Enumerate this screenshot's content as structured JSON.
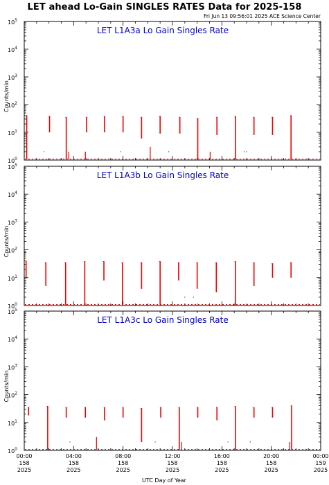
{
  "title": "LET ahead Lo-Gain SINGLES RATES Data for 2025-158",
  "timestamp": "Fri Jun 13 09:56:01 2025 ACE Science Center",
  "colors": {
    "series": "#ee0000",
    "title": "#0000cc",
    "axes": "#000000",
    "background": "#ffffff"
  },
  "chart_data": [
    {
      "type": "line",
      "title": "LET L1A3a Lo Gain Singles Rate",
      "ylabel": "Counts/min",
      "yscale": "log",
      "ylim": [
        1,
        100000
      ],
      "xlim": [
        0,
        24
      ],
      "x_unit": "UTC hour of day 158",
      "baseline": 1,
      "spikes": [
        {
          "x": 0.2,
          "top": 40,
          "bottom": 1
        },
        {
          "x": 2.05,
          "top": 38,
          "bottom": 10
        },
        {
          "x": 3.4,
          "top": 35,
          "bottom": 1
        },
        {
          "x": 5.05,
          "top": 35,
          "bottom": 10
        },
        {
          "x": 6.5,
          "top": 38,
          "bottom": 10
        },
        {
          "x": 8.0,
          "top": 38,
          "bottom": 10
        },
        {
          "x": 9.5,
          "top": 35,
          "bottom": 6
        },
        {
          "x": 11.0,
          "top": 38,
          "bottom": 9
        },
        {
          "x": 12.6,
          "top": 35,
          "bottom": 9
        },
        {
          "x": 14.05,
          "top": 32,
          "bottom": 1
        },
        {
          "x": 15.6,
          "top": 35,
          "bottom": 8
        },
        {
          "x": 17.1,
          "top": 38,
          "bottom": 1
        },
        {
          "x": 18.6,
          "top": 35,
          "bottom": 8
        },
        {
          "x": 20.1,
          "top": 35,
          "bottom": 8
        },
        {
          "x": 21.6,
          "top": 40,
          "bottom": 1
        }
      ],
      "blips": [
        {
          "x": 3.6,
          "value": 2
        },
        {
          "x": 4.95,
          "value": 2
        },
        {
          "x": 10.2,
          "value": 3
        },
        {
          "x": 15.05,
          "value": 2
        }
      ],
      "dots": [
        {
          "x": 1.6,
          "value": 2
        },
        {
          "x": 7.8,
          "value": 2
        },
        {
          "x": 11.7,
          "value": 2
        },
        {
          "x": 17.8,
          "value": 2
        },
        {
          "x": 18.0,
          "value": 2
        }
      ]
    },
    {
      "type": "line",
      "title": "LET L1A3b Lo Gain Singles Rate",
      "ylabel": "Counts/min",
      "yscale": "log",
      "ylim": [
        1,
        100000
      ],
      "xlim": [
        0,
        24
      ],
      "x_unit": "UTC hour of day 158",
      "baseline": 1,
      "spikes": [
        {
          "x": 0.15,
          "top": 40,
          "bottom": 10
        },
        {
          "x": 1.75,
          "top": 35,
          "bottom": 5
        },
        {
          "x": 3.35,
          "top": 35,
          "bottom": 1
        },
        {
          "x": 4.9,
          "top": 38,
          "bottom": 1
        },
        {
          "x": 6.45,
          "top": 38,
          "bottom": 8
        },
        {
          "x": 7.95,
          "top": 35,
          "bottom": 1
        },
        {
          "x": 9.5,
          "top": 35,
          "bottom": 4
        },
        {
          "x": 11.0,
          "top": 38,
          "bottom": 1
        },
        {
          "x": 12.5,
          "top": 35,
          "bottom": 8
        },
        {
          "x": 14.0,
          "top": 35,
          "bottom": 4
        },
        {
          "x": 15.55,
          "top": 35,
          "bottom": 3
        },
        {
          "x": 17.1,
          "top": 38,
          "bottom": 1
        },
        {
          "x": 18.6,
          "top": 35,
          "bottom": 5
        },
        {
          "x": 20.1,
          "top": 32,
          "bottom": 10
        },
        {
          "x": 21.6,
          "top": 35,
          "bottom": 10
        }
      ],
      "blips": [],
      "dots": [
        {
          "x": 13.0,
          "value": 2
        },
        {
          "x": 13.7,
          "value": 2
        }
      ]
    },
    {
      "type": "line",
      "title": "LET L1A3c Lo Gain Singles Rate",
      "ylabel": "Counts/min",
      "yscale": "log",
      "ylim": [
        1,
        100000
      ],
      "xlim": [
        0,
        24
      ],
      "x_unit": "UTC hour of day 158",
      "baseline": 1,
      "spikes": [
        {
          "x": 0.35,
          "top": 35,
          "bottom": 18
        },
        {
          "x": 1.9,
          "top": 38,
          "bottom": 1
        },
        {
          "x": 3.4,
          "top": 35,
          "bottom": 15
        },
        {
          "x": 4.95,
          "top": 35,
          "bottom": 15
        },
        {
          "x": 6.5,
          "top": 35,
          "bottom": 12
        },
        {
          "x": 8.0,
          "top": 35,
          "bottom": 15
        },
        {
          "x": 9.5,
          "top": 32,
          "bottom": 2
        },
        {
          "x": 11.05,
          "top": 35,
          "bottom": 15
        },
        {
          "x": 12.55,
          "top": 35,
          "bottom": 1
        },
        {
          "x": 14.05,
          "top": 35,
          "bottom": 15
        },
        {
          "x": 15.6,
          "top": 35,
          "bottom": 12
        },
        {
          "x": 17.1,
          "top": 38,
          "bottom": 1
        },
        {
          "x": 18.6,
          "top": 35,
          "bottom": 15
        },
        {
          "x": 20.1,
          "top": 35,
          "bottom": 15
        },
        {
          "x": 21.65,
          "top": 40,
          "bottom": 1
        }
      ],
      "blips": [
        {
          "x": 5.85,
          "value": 3
        },
        {
          "x": 12.75,
          "value": 2
        },
        {
          "x": 21.5,
          "value": 2
        }
      ],
      "dots": [
        {
          "x": 3.7,
          "value": 2
        },
        {
          "x": 10.6,
          "value": 2
        },
        {
          "x": 16.5,
          "value": 2
        },
        {
          "x": 18.3,
          "value": 2
        }
      ]
    }
  ],
  "y_tick_labels": [
    {
      "base": "10",
      "exp": "0"
    },
    {
      "base": "10",
      "exp": "1"
    },
    {
      "base": "10",
      "exp": "2"
    },
    {
      "base": "10",
      "exp": "3"
    },
    {
      "base": "10",
      "exp": "4"
    },
    {
      "base": "10",
      "exp": "5"
    }
  ],
  "x_tick_labels": [
    {
      "time": "00:00",
      "day": "158",
      "year": "2025"
    },
    {
      "time": "04:00",
      "day": "158",
      "year": "2025"
    },
    {
      "time": "08:00",
      "day": "158",
      "year": "2025"
    },
    {
      "time": "12:00",
      "day": "158",
      "year": "2025"
    },
    {
      "time": "16:00",
      "day": "158",
      "year": "2025"
    },
    {
      "time": "20:00",
      "day": "158",
      "year": "2025"
    },
    {
      "time": "00:00",
      "day": "159",
      "year": "2025"
    }
  ],
  "x_axis_label": "UTC Day of Year"
}
